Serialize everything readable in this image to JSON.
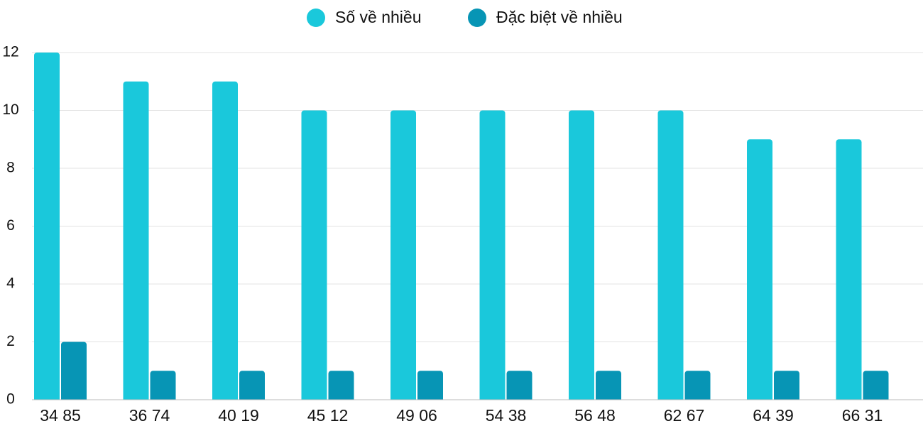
{
  "chart_data": {
    "type": "bar",
    "categories": [
      "34 85",
      "36 74",
      "40 19",
      "45 12",
      "49 06",
      "54 38",
      "56 48",
      "62 67",
      "64 39",
      "66 31"
    ],
    "series": [
      {
        "name": "Số về nhiều",
        "color": "#1ac8db",
        "values": [
          12,
          11,
          11,
          10,
          10,
          10,
          10,
          10,
          9,
          9
        ]
      },
      {
        "name": "Đặc biệt về nhiều",
        "color": "#0795b5",
        "values": [
          2,
          1,
          1,
          1,
          1,
          1,
          1,
          1,
          1,
          1
        ]
      }
    ],
    "ylim": [
      0,
      12
    ],
    "yticks": [
      0,
      2,
      4,
      6,
      8,
      10,
      12
    ],
    "grid": true,
    "legend": "top"
  }
}
